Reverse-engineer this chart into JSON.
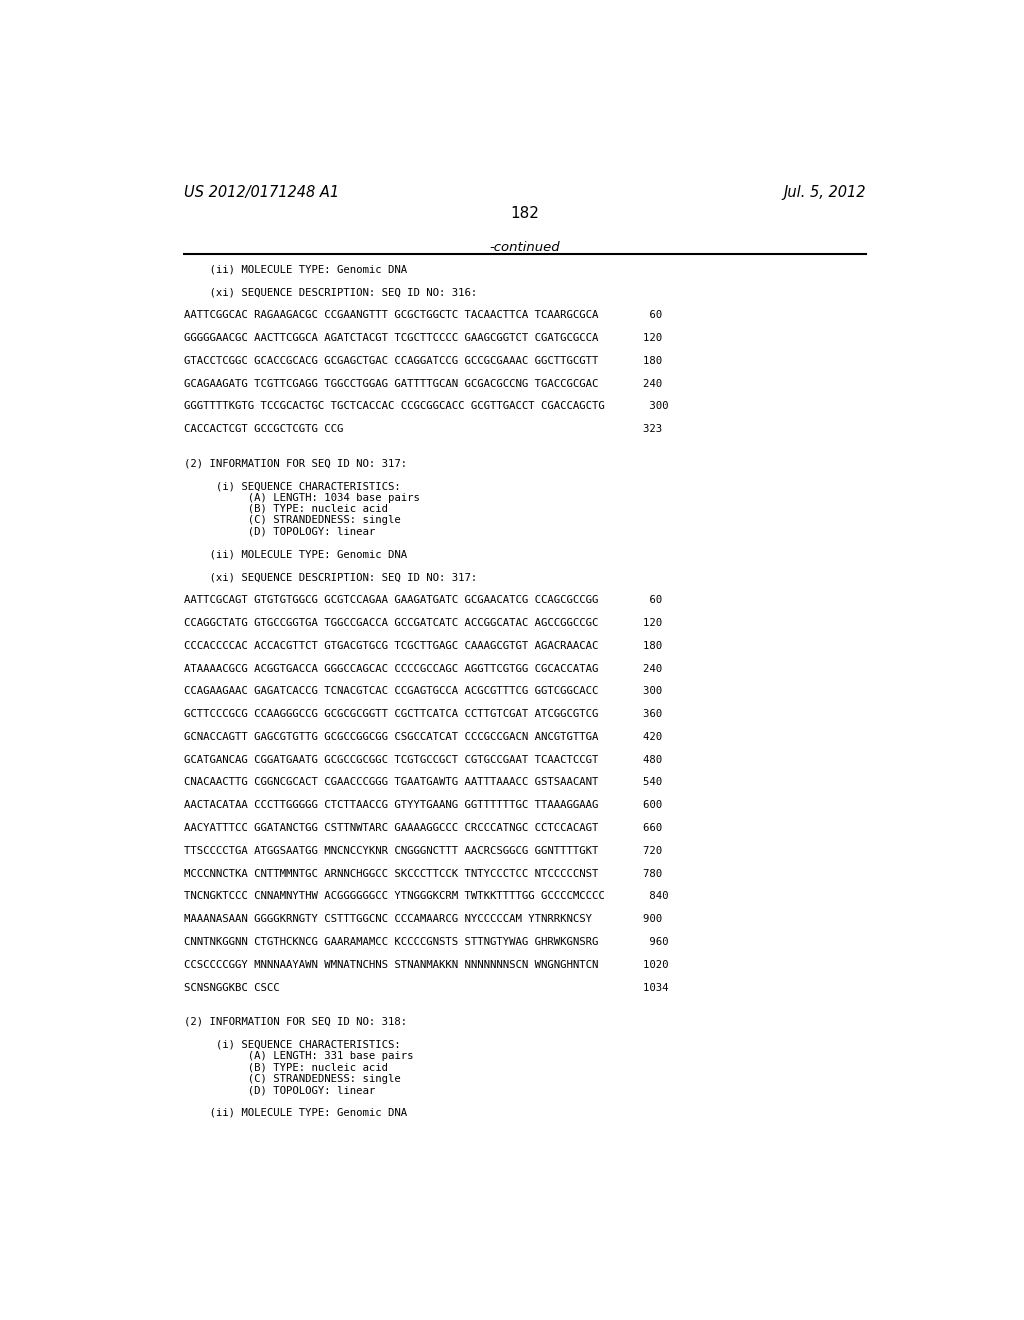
{
  "header_left": "US 2012/0171248 A1",
  "header_right": "Jul. 5, 2012",
  "page_number": "182",
  "continued_text": "-continued",
  "background_color": "#ffffff",
  "text_color": "#000000",
  "lines": [
    "    (ii) MOLECULE TYPE: Genomic DNA",
    "",
    "    (xi) SEQUENCE DESCRIPTION: SEQ ID NO: 316:",
    "",
    "AATTCGGCAC RAGAAGACGC CCGAANGTTT GCGCTGGCTC TACAACTTCA TCAARGCGCA        60",
    "",
    "GGGGGAACGC AACTTCGGCA AGATCTACGT TCGCTTCCCC GAAGCGGTCT CGATGCGCCA       120",
    "",
    "GTACCTCGGC GCACCGCACG GCGAGCTGAC CCAGGATCCG GCCGCGAAAC GGCTTGCGTT       180",
    "",
    "GCAGAAGATG TCGTTCGAGG TGGCCTGGAG GATTTTGCAN GCGACGCCNG TGACCGCGAC       240",
    "",
    "GGGTTTTKGTG TCCGCACTGC TGCTCACCAC CCGCGGCACC GCGTTGACCT CGACCAGCTG       300",
    "",
    "CACCACTCGT GCCGCTCGTG CCG                                               323",
    "",
    "",
    "(2) INFORMATION FOR SEQ ID NO: 317:",
    "",
    "     (i) SEQUENCE CHARACTERISTICS:",
    "          (A) LENGTH: 1034 base pairs",
    "          (B) TYPE: nucleic acid",
    "          (C) STRANDEDNESS: single",
    "          (D) TOPOLOGY: linear",
    "",
    "    (ii) MOLECULE TYPE: Genomic DNA",
    "",
    "    (xi) SEQUENCE DESCRIPTION: SEQ ID NO: 317:",
    "",
    "AATTCGCAGT GTGTGTGGCG GCGTCCAGAA GAAGATGATC GCGAACATCG CCAGCGCCGG        60",
    "",
    "CCAGGCTATG GTGCCGGTGA TGGCCGACCA GCCGATCATC ACCGGCATAC AGCCGGCCGC       120",
    "",
    "CCCACCCCAC ACCACGTTCT GTGACGTGCG TCGCTTGAGC CAAAGCGTGT AGACRAACAC       180",
    "",
    "ATAAAACGCG ACGGTGACCA GGGCCAGCAC CCCCGCCAGC AGGTTCGTGG CGCACCATAG       240",
    "",
    "CCAGAAGAAC GAGATCACCG TCNACGTCAC CCGAGTGCCA ACGCGTTTCG GGTCGGCACC       300",
    "",
    "GCTTCCCGCG CCAAGGGCCG GCGCGCGGTT CGCTTCATCA CCTTGTCGAT ATCGGCGTCG       360",
    "",
    "GCNACCAGTT GAGCGTGTTG GCGCCGGCGG CSGCCATCAT CCCGCCGACN ANCGTGTTGA       420",
    "",
    "GCATGANCAG CGGATGAATG GCGCCGCGGC TCGTGCCGCT CGTGCCGAAT TCAACTCCGT       480",
    "",
    "CNACAACTTG CGGNCGCACT CGAACCCGGG TGAATGAWTG AATTTAAACC GSTSAACANT       540",
    "",
    "AACTACATAA CCCTTGGGGG CTCTTAACCG GTYYTGAANG GGTTTTTTGC TTAAAGGAAG       600",
    "",
    "AACYATTTCC GGATANCTGG CSTTNWTARC GAAAAGGCCC CRCCCATNGC CCTCCACAGT       660",
    "",
    "TTSCCCCTGA ATGGSAATGG MNCNCCYKNR CNGGGNCTTT AACRCSGGCG GGNTTTTGKT       720",
    "",
    "MCCCNNCTKA CNTTMMNTGC ARNNCHGGCC SKCCCTTCCK TNTYCCCTCC NTCCCCCNST       780",
    "",
    "TNCNGKTCCC CNNAMNYTHW ACGGGGGGCC YTNGGGKCRM TWTKKTTTTGG GCCCCMCCCC       840",
    "",
    "MAAANASAAN GGGGKRNGTY CSTTTGGCNC CCCAMAARCG NYCCCCCAM YTNRRKNCSY        900",
    "",
    "CNNTNKGGNN CTGTHCKNCG GAARAMAMCC KCCCCGNSTS STTNGTYWAG GHRWKGNSRG        960",
    "",
    "CCSCCCCGGY MNNNAAYAWN WMNATNCHNS STNANMAKKN NNNNNNNSCN WNGNGHNТCN       1020",
    "",
    "SCNSNGGKBC CSCC                                                         1034",
    "",
    "",
    "(2) INFORMATION FOR SEQ ID NO: 318:",
    "",
    "     (i) SEQUENCE CHARACTERISTICS:",
    "          (A) LENGTH: 331 base pairs",
    "          (B) TYPE: nucleic acid",
    "          (C) STRANDEDNESS: single",
    "          (D) TOPOLOGY: linear",
    "",
    "    (ii) MOLECULE TYPE: Genomic DNA"
  ]
}
